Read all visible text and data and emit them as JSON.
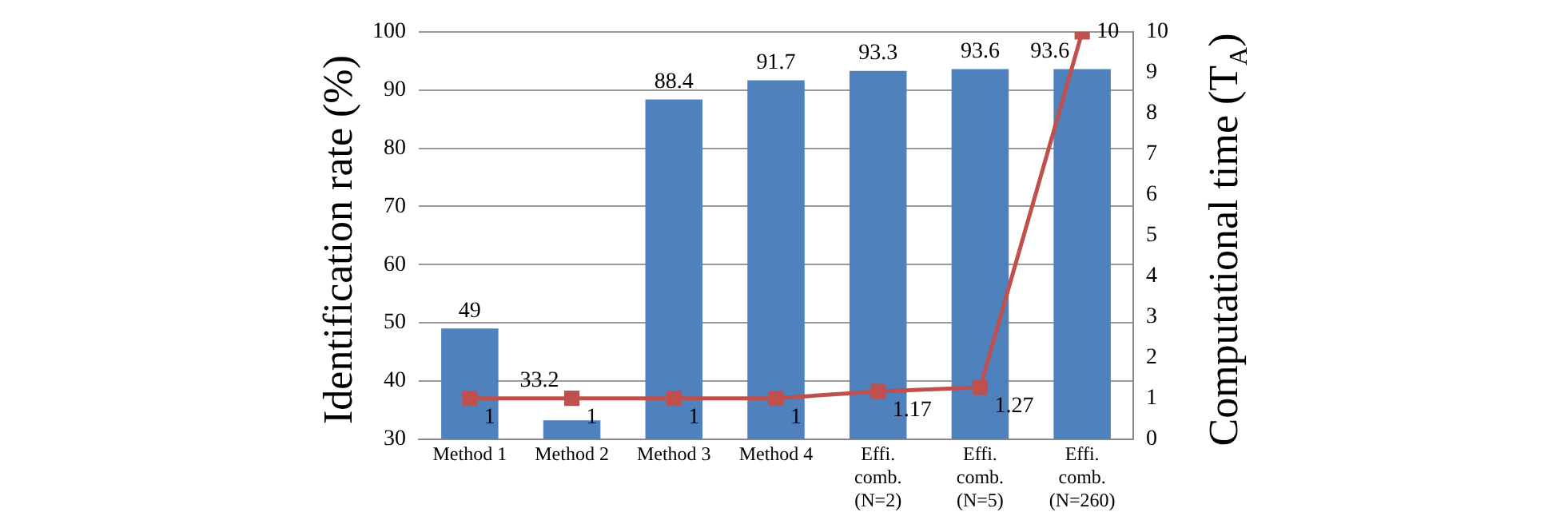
{
  "chart_data": {
    "type": "bar",
    "ylabel": "Identification rate (%)",
    "y2label": "Computational time (T$_{A}$)",
    "categories": [
      "Method 1",
      "Method 2",
      "Method 3",
      "Method 4",
      "Effi. comb. (N=2)",
      "Effi. comb. (N=5)",
      "Effi. comb. (N=260)"
    ],
    "series": [
      {
        "color": "#4f81bd",
        "values": [
          49,
          33.2,
          88.4,
          91.7,
          93.3,
          93.6,
          93.6
        ]
      },
      {
        "type": "line",
        "axis": "y2",
        "color": "#c0504d",
        "marker": "square",
        "values": [
          1,
          1,
          1,
          1,
          1.17,
          1.27,
          10
        ]
      }
    ],
    "ylim": [
      30,
      100
    ],
    "yticks": [
      30,
      40,
      50,
      60,
      70,
      80,
      90,
      100
    ],
    "y2lim": [
      0,
      10
    ],
    "y2ticks": [
      0,
      1,
      2,
      3,
      4,
      5,
      6,
      7,
      8,
      9,
      10
    ],
    "grid": "y",
    "legend": false,
    "data_labels": true
  }
}
